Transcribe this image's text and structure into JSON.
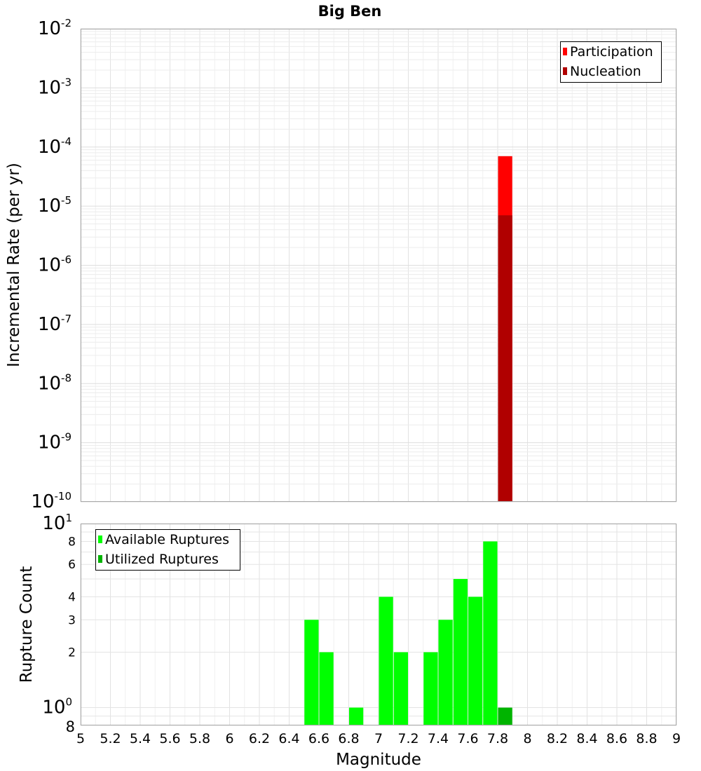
{
  "chart_data": [
    {
      "type": "bar",
      "panel": "top",
      "title": "Big Ben",
      "ylabel": "Incremental Rate (per yr)",
      "xlim": [
        5,
        9
      ],
      "ylim": [
        1e-10,
        0.01
      ],
      "y_scale": "log",
      "y_tick_labels": [
        {
          "base": "10",
          "exp": "-10"
        },
        {
          "base": "10",
          "exp": "-9"
        },
        {
          "base": "10",
          "exp": "-8"
        },
        {
          "base": "10",
          "exp": "-7"
        },
        {
          "base": "10",
          "exp": "-6"
        },
        {
          "base": "10",
          "exp": "-5"
        },
        {
          "base": "10",
          "exp": "-4"
        },
        {
          "base": "10",
          "exp": "-3"
        },
        {
          "base": "10",
          "exp": "-2"
        }
      ],
      "grid": true,
      "legend_position": "top-right",
      "series": [
        {
          "name": "Participation",
          "color": "#ff0000",
          "bin_centers": [
            7.85
          ],
          "values": [
            7e-05
          ]
        },
        {
          "name": "Nucleation",
          "color": "#b00000",
          "bin_centers": [
            7.85
          ],
          "values": [
            7e-06
          ]
        }
      ]
    },
    {
      "type": "bar",
      "panel": "bottom",
      "xlabel": "Magnitude",
      "ylabel": "Rupture Count",
      "xlim": [
        5,
        9
      ],
      "ylim": [
        0.8,
        10
      ],
      "y_scale": "log",
      "x_tick_labels": [
        "5",
        "5.2",
        "5.4",
        "5.6",
        "5.8",
        "6",
        "6.2",
        "6.4",
        "6.6",
        "6.8",
        "7",
        "7.2",
        "7.4",
        "7.6",
        "7.8",
        "8",
        "8.2",
        "8.4",
        "8.6",
        "8.8",
        "9"
      ],
      "y_tick_labels": [
        "2",
        "3",
        "4",
        "6",
        "8"
      ],
      "y_sci_tick_labels": [
        {
          "base": "10",
          "exp": "0"
        },
        {
          "base": "10",
          "exp": "1"
        }
      ],
      "y_bottom_label": "8",
      "grid": true,
      "legend_position": "top-left",
      "series": [
        {
          "name": "Available Ruptures",
          "color": "#00ff00",
          "bin_centers": [
            6.55,
            6.65,
            6.85,
            7.05,
            7.15,
            7.35,
            7.45,
            7.55,
            7.65,
            7.75
          ],
          "values": [
            3,
            2,
            1,
            4,
            2,
            2,
            3,
            5,
            4,
            8
          ]
        },
        {
          "name": "Utilized Ruptures",
          "color": "#00b400",
          "bin_centers": [
            7.85
          ],
          "values": [
            1
          ]
        }
      ]
    }
  ]
}
